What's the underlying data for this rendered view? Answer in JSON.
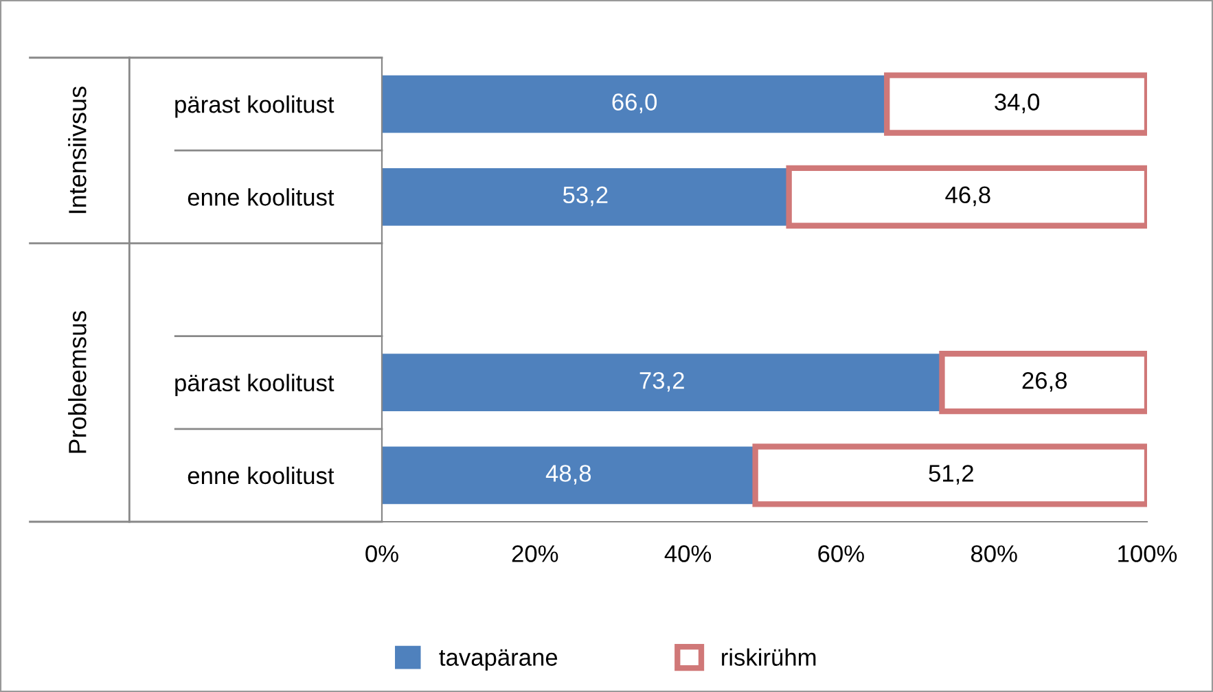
{
  "chart_data": {
    "type": "bar",
    "orientation": "horizontal",
    "stacked": true,
    "categories": [
      "pärast koolitust",
      "enne koolitust",
      null,
      "pärast koolitust",
      "enne koolitust"
    ],
    "series": [
      {
        "name": "tavapärane",
        "color": "#4f81bd",
        "values": [
          66.0,
          53.2,
          null,
          73.2,
          48.8
        ],
        "value_labels": [
          "66,0",
          "53,2",
          null,
          "73,2",
          "48,8"
        ]
      },
      {
        "name": "riskirühm",
        "color": "#d07878",
        "values": [
          34.0,
          46.8,
          null,
          26.8,
          51.2
        ],
        "value_labels": [
          "34,0",
          "46,8",
          null,
          "26,8",
          "51,2"
        ]
      }
    ],
    "xlim": [
      0,
      100
    ],
    "xticks": [
      {
        "value": 0,
        "label": "0%"
      },
      {
        "value": 20,
        "label": "20%"
      },
      {
        "value": 40,
        "label": "40%"
      },
      {
        "value": 60,
        "label": "60%"
      },
      {
        "value": 80,
        "label": "80%"
      },
      {
        "value": 100,
        "label": "100%"
      }
    ],
    "annotations": [
      "Intensiivsus",
      "Probleemsus"
    ],
    "legend": "bottom",
    "grid": false
  }
}
